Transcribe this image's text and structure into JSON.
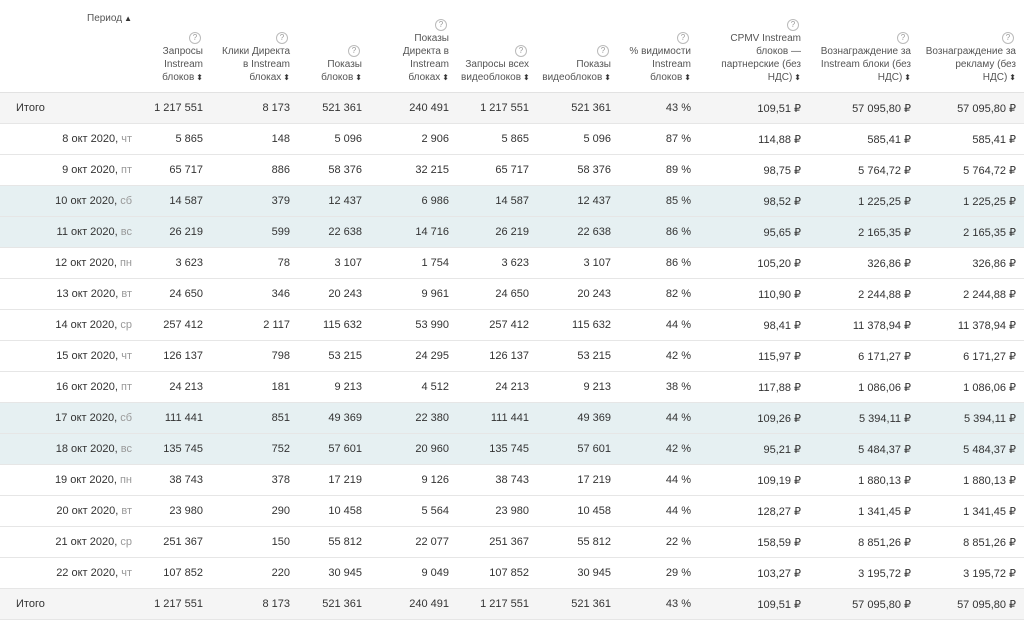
{
  "headers": [
    {
      "id": "period",
      "label": "Период",
      "sort": "▲"
    },
    {
      "id": "req_instream",
      "label": "Запросы Instream блоков",
      "sort": "⬍"
    },
    {
      "id": "clicks",
      "label": "Клики Директа в Instream блоках",
      "sort": "⬍"
    },
    {
      "id": "shows",
      "label": "Показы блоков",
      "sort": "⬍"
    },
    {
      "id": "shows_direct",
      "label": "Показы Директа в Instream блоках",
      "sort": "⬍"
    },
    {
      "id": "req_all",
      "label": "Запросы всех видеоблоков",
      "sort": "⬍"
    },
    {
      "id": "shows_video",
      "label": "Показы видеоблоков",
      "sort": "⬍"
    },
    {
      "id": "visibility",
      "label": "% видимости Instream блоков",
      "sort": "⬍"
    },
    {
      "id": "cpmv",
      "label": "CPMV Instream блоков — партнерские (без НДС)",
      "sort": "⬍"
    },
    {
      "id": "reward_instream",
      "label": "Вознаграждение за Instream блоки (без НДС)",
      "sort": "⬍"
    },
    {
      "id": "reward_ads",
      "label": "Вознаграждение за рекламу (без НДС)",
      "sort": "⬍"
    }
  ],
  "currency": "₽",
  "total_top": [
    "Итого",
    "1 217 551",
    "8 173",
    "521 361",
    "240 491",
    "1 217 551",
    "521 361",
    "43 %",
    "109,51",
    "57 095,80",
    "57 095,80"
  ],
  "rows": [
    {
      "date": "8 окт 2020,",
      "dow": "чт",
      "weekend": false,
      "v": [
        "5 865",
        "148",
        "5 096",
        "2 906",
        "5 865",
        "5 096",
        "87 %",
        "114,88",
        "585,41",
        "585,41"
      ]
    },
    {
      "date": "9 окт 2020,",
      "dow": "пт",
      "weekend": false,
      "v": [
        "65 717",
        "886",
        "58 376",
        "32 215",
        "65 717",
        "58 376",
        "89 %",
        "98,75",
        "5 764,72",
        "5 764,72"
      ]
    },
    {
      "date": "10 окт 2020,",
      "dow": "сб",
      "weekend": true,
      "v": [
        "14 587",
        "379",
        "12 437",
        "6 986",
        "14 587",
        "12 437",
        "85 %",
        "98,52",
        "1 225,25",
        "1 225,25"
      ]
    },
    {
      "date": "11 окт 2020,",
      "dow": "вс",
      "weekend": true,
      "v": [
        "26 219",
        "599",
        "22 638",
        "14 716",
        "26 219",
        "22 638",
        "86 %",
        "95,65",
        "2 165,35",
        "2 165,35"
      ]
    },
    {
      "date": "12 окт 2020,",
      "dow": "пн",
      "weekend": false,
      "v": [
        "3 623",
        "78",
        "3 107",
        "1 754",
        "3 623",
        "3 107",
        "86 %",
        "105,20",
        "326,86",
        "326,86"
      ]
    },
    {
      "date": "13 окт 2020,",
      "dow": "вт",
      "weekend": false,
      "v": [
        "24 650",
        "346",
        "20 243",
        "9 961",
        "24 650",
        "20 243",
        "82 %",
        "110,90",
        "2 244,88",
        "2 244,88"
      ]
    },
    {
      "date": "14 окт 2020,",
      "dow": "ср",
      "weekend": false,
      "v": [
        "257 412",
        "2 117",
        "115 632",
        "53 990",
        "257 412",
        "115 632",
        "44 %",
        "98,41",
        "11 378,94",
        "11 378,94"
      ]
    },
    {
      "date": "15 окт 2020,",
      "dow": "чт",
      "weekend": false,
      "v": [
        "126 137",
        "798",
        "53 215",
        "24 295",
        "126 137",
        "53 215",
        "42 %",
        "115,97",
        "6 171,27",
        "6 171,27"
      ]
    },
    {
      "date": "16 окт 2020,",
      "dow": "пт",
      "weekend": false,
      "v": [
        "24 213",
        "181",
        "9 213",
        "4 512",
        "24 213",
        "9 213",
        "38 %",
        "117,88",
        "1 086,06",
        "1 086,06"
      ]
    },
    {
      "date": "17 окт 2020,",
      "dow": "сб",
      "weekend": true,
      "v": [
        "111 441",
        "851",
        "49 369",
        "22 380",
        "111 441",
        "49 369",
        "44 %",
        "109,26",
        "5 394,11",
        "5 394,11"
      ]
    },
    {
      "date": "18 окт 2020,",
      "dow": "вс",
      "weekend": true,
      "v": [
        "135 745",
        "752",
        "57 601",
        "20 960",
        "135 745",
        "57 601",
        "42 %",
        "95,21",
        "5 484,37",
        "5 484,37"
      ]
    },
    {
      "date": "19 окт 2020,",
      "dow": "пн",
      "weekend": false,
      "v": [
        "38 743",
        "378",
        "17 219",
        "9 126",
        "38 743",
        "17 219",
        "44 %",
        "109,19",
        "1 880,13",
        "1 880,13"
      ]
    },
    {
      "date": "20 окт 2020,",
      "dow": "вт",
      "weekend": false,
      "v": [
        "23 980",
        "290",
        "10 458",
        "5 564",
        "23 980",
        "10 458",
        "44 %",
        "128,27",
        "1 341,45",
        "1 341,45"
      ]
    },
    {
      "date": "21 окт 2020,",
      "dow": "ср",
      "weekend": false,
      "v": [
        "251 367",
        "150",
        "55 812",
        "22 077",
        "251 367",
        "55 812",
        "22 %",
        "158,59",
        "8 851,26",
        "8 851,26"
      ]
    },
    {
      "date": "22 окт 2020,",
      "dow": "чт",
      "weekend": false,
      "v": [
        "107 852",
        "220",
        "30 945",
        "9 049",
        "107 852",
        "30 945",
        "29 %",
        "103,27",
        "3 195,72",
        "3 195,72"
      ]
    }
  ],
  "total_bottom": [
    "Итого",
    "1 217 551",
    "8 173",
    "521 361",
    "240 491",
    "1 217 551",
    "521 361",
    "43 %",
    "109,51",
    "57 095,80",
    "57 095,80"
  ]
}
